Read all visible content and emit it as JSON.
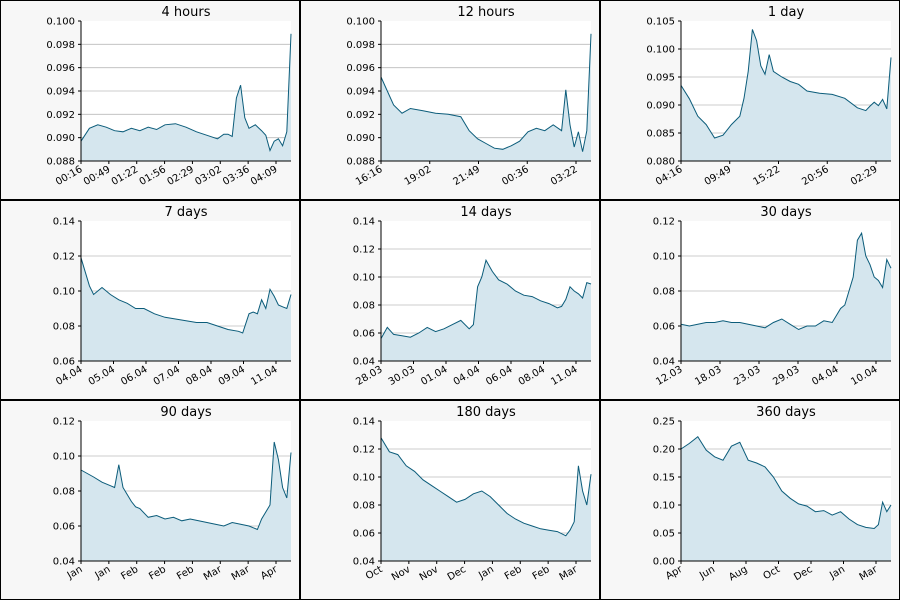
{
  "colors": {
    "line": "#0b5c7a",
    "fill": "#d5e6ee",
    "grid": "#bbbbbb",
    "plot_bg": "#ffffff",
    "panel_bg": "#f7f7f7"
  },
  "chart_data": [
    {
      "type": "area",
      "title": "4 hours",
      "ylim": [
        0.088,
        0.1
      ],
      "yticks": [
        "0.088",
        "0.090",
        "0.092",
        "0.094",
        "0.096",
        "0.098",
        "0.100"
      ],
      "xticks": [
        "00:16",
        "00:49",
        "01:22",
        "01:56",
        "02:29",
        "03:02",
        "03:36",
        "04:09"
      ],
      "grid": "horizontal",
      "series": [
        {
          "x": [
            0,
            4,
            8,
            12,
            16,
            20,
            24,
            28,
            32,
            36,
            40,
            45,
            50,
            55,
            60,
            65,
            68,
            70,
            72,
            74,
            76,
            78,
            80,
            83,
            86,
            88,
            90,
            92,
            94,
            96,
            98,
            100
          ],
          "y": [
            0.0897,
            0.0908,
            0.0911,
            0.0909,
            0.0906,
            0.0905,
            0.0908,
            0.0906,
            0.0909,
            0.0907,
            0.0911,
            0.0912,
            0.0909,
            0.0905,
            0.0902,
            0.0899,
            0.0903,
            0.0903,
            0.0901,
            0.0934,
            0.0945,
            0.0917,
            0.0908,
            0.0911,
            0.0906,
            0.0902,
            0.0889,
            0.0897,
            0.0899,
            0.0893,
            0.0905,
            0.0989
          ]
        }
      ]
    },
    {
      "type": "area",
      "title": "12 hours",
      "ylim": [
        0.088,
        0.1
      ],
      "yticks": [
        "0.088",
        "0.090",
        "0.092",
        "0.094",
        "0.096",
        "0.098",
        "0.100"
      ],
      "xticks": [
        "16:16",
        "19:02",
        "21:49",
        "00:36",
        "03:22"
      ],
      "grid": "horizontal",
      "series": [
        {
          "x": [
            0,
            3,
            6,
            10,
            14,
            20,
            26,
            32,
            38,
            42,
            46,
            50,
            54,
            58,
            62,
            66,
            70,
            74,
            78,
            82,
            86,
            88,
            90,
            92,
            94,
            96,
            98,
            100
          ],
          "y": [
            0.0952,
            0.094,
            0.0928,
            0.0921,
            0.0925,
            0.0923,
            0.0921,
            0.092,
            0.0918,
            0.0906,
            0.0899,
            0.0895,
            0.0891,
            0.089,
            0.0893,
            0.0897,
            0.0905,
            0.0908,
            0.0906,
            0.0911,
            0.0906,
            0.0941,
            0.0911,
            0.0892,
            0.0905,
            0.0888,
            0.0906,
            0.0989
          ]
        }
      ]
    },
    {
      "type": "area",
      "title": "1 day",
      "ylim": [
        0.08,
        0.105
      ],
      "yticks": [
        "0.080",
        "0.085",
        "0.090",
        "0.095",
        "0.100",
        "0.105"
      ],
      "xticks": [
        "04:16",
        "09:49",
        "15:22",
        "20:56",
        "02:29"
      ],
      "grid": "horizontal",
      "series": [
        {
          "x": [
            0,
            4,
            8,
            12,
            16,
            20,
            24,
            28,
            30,
            32,
            34,
            36,
            38,
            40,
            42,
            44,
            48,
            52,
            56,
            60,
            66,
            72,
            78,
            84,
            88,
            90,
            92,
            94,
            96,
            98,
            100
          ],
          "y": [
            0.0935,
            0.0911,
            0.088,
            0.0865,
            0.0841,
            0.0846,
            0.0865,
            0.088,
            0.0912,
            0.096,
            0.1035,
            0.1015,
            0.097,
            0.0955,
            0.099,
            0.096,
            0.095,
            0.0942,
            0.0937,
            0.0925,
            0.0921,
            0.0919,
            0.0912,
            0.0895,
            0.089,
            0.0898,
            0.0905,
            0.0899,
            0.091,
            0.0893,
            0.0985
          ]
        }
      ]
    },
    {
      "type": "area",
      "title": "7 days",
      "ylim": [
        0.06,
        0.14
      ],
      "yticks": [
        "0.06",
        "0.08",
        "0.10",
        "0.12",
        "0.14"
      ],
      "xticks": [
        "04.04",
        "05.04",
        "06.04",
        "07.04",
        "08.04",
        "09.04",
        "11.04"
      ],
      "grid": "horizontal",
      "series": [
        {
          "x": [
            0,
            2,
            4,
            6,
            8,
            10,
            14,
            18,
            22,
            26,
            30,
            35,
            40,
            45,
            50,
            55,
            60,
            65,
            70,
            75,
            77,
            80,
            82,
            84,
            86,
            88,
            90,
            92,
            94,
            96,
            98,
            100
          ],
          "y": [
            0.119,
            0.111,
            0.103,
            0.098,
            0.1,
            0.102,
            0.098,
            0.095,
            0.093,
            0.09,
            0.09,
            0.087,
            0.085,
            0.084,
            0.083,
            0.082,
            0.082,
            0.08,
            0.078,
            0.077,
            0.076,
            0.087,
            0.088,
            0.087,
            0.095,
            0.09,
            0.101,
            0.097,
            0.092,
            0.091,
            0.09,
            0.098
          ]
        }
      ]
    },
    {
      "type": "area",
      "title": "14 days",
      "ylim": [
        0.04,
        0.14
      ],
      "yticks": [
        "0.04",
        "0.06",
        "0.08",
        "0.10",
        "0.12",
        "0.14"
      ],
      "xticks": [
        "28.03",
        "30.03",
        "01.04",
        "04.04",
        "06.04",
        "08.04",
        "11.04"
      ],
      "grid": "horizontal",
      "series": [
        {
          "x": [
            0,
            3,
            6,
            10,
            14,
            18,
            22,
            26,
            30,
            34,
            38,
            42,
            44,
            46,
            48,
            50,
            53,
            56,
            60,
            64,
            68,
            72,
            76,
            80,
            84,
            86,
            88,
            90,
            92,
            94,
            96,
            98,
            100
          ],
          "y": [
            0.056,
            0.064,
            0.059,
            0.058,
            0.057,
            0.06,
            0.064,
            0.061,
            0.063,
            0.066,
            0.069,
            0.063,
            0.066,
            0.093,
            0.1,
            0.112,
            0.104,
            0.098,
            0.095,
            0.09,
            0.087,
            0.086,
            0.083,
            0.081,
            0.078,
            0.079,
            0.084,
            0.093,
            0.09,
            0.088,
            0.085,
            0.096,
            0.095
          ]
        }
      ]
    },
    {
      "type": "area",
      "title": "30 days",
      "ylim": [
        0.04,
        0.12
      ],
      "yticks": [
        "0.04",
        "0.06",
        "0.08",
        "0.10",
        "0.12"
      ],
      "xticks": [
        "12.03",
        "18.03",
        "23.03",
        "29.03",
        "04.04",
        "10.04"
      ],
      "grid": "horizontal",
      "series": [
        {
          "x": [
            0,
            4,
            8,
            12,
            16,
            20,
            24,
            28,
            32,
            36,
            40,
            44,
            48,
            52,
            56,
            60,
            64,
            68,
            72,
            74,
            76,
            78,
            80,
            82,
            84,
            86,
            88,
            90,
            92,
            94,
            96,
            98,
            100
          ],
          "y": [
            0.061,
            0.06,
            0.061,
            0.062,
            0.062,
            0.063,
            0.062,
            0.062,
            0.061,
            0.06,
            0.059,
            0.062,
            0.064,
            0.061,
            0.058,
            0.06,
            0.06,
            0.063,
            0.062,
            0.066,
            0.07,
            0.072,
            0.08,
            0.088,
            0.109,
            0.113,
            0.1,
            0.095,
            0.088,
            0.086,
            0.082,
            0.098,
            0.093
          ]
        }
      ]
    },
    {
      "type": "area",
      "title": "90 days",
      "ylim": [
        0.04,
        0.12
      ],
      "yticks": [
        "0.04",
        "0.06",
        "0.08",
        "0.10",
        "0.12"
      ],
      "xticks": [
        "Jan",
        "Jan",
        "Feb",
        "Feb",
        "Feb",
        "Mar",
        "Mar",
        "Apr"
      ],
      "grid": "horizontal",
      "series": [
        {
          "x": [
            0,
            3,
            6,
            10,
            14,
            16,
            18,
            20,
            22,
            24,
            26,
            28,
            32,
            36,
            40,
            44,
            48,
            52,
            56,
            60,
            64,
            68,
            72,
            76,
            80,
            84,
            86,
            88,
            90,
            92,
            94,
            96,
            98,
            100
          ],
          "y": [
            0.092,
            0.09,
            0.088,
            0.085,
            0.083,
            0.082,
            0.095,
            0.082,
            0.078,
            0.074,
            0.071,
            0.07,
            0.065,
            0.066,
            0.064,
            0.065,
            0.063,
            0.064,
            0.063,
            0.062,
            0.061,
            0.06,
            0.062,
            0.061,
            0.06,
            0.058,
            0.064,
            0.068,
            0.072,
            0.108,
            0.098,
            0.082,
            0.076,
            0.102
          ]
        }
      ]
    },
    {
      "type": "area",
      "title": "180 days",
      "ylim": [
        0.04,
        0.14
      ],
      "yticks": [
        "0.04",
        "0.06",
        "0.08",
        "0.10",
        "0.12",
        "0.14"
      ],
      "xticks": [
        "Oct",
        "Nov",
        "Nov",
        "Dec",
        "Jan",
        "Feb",
        "Feb",
        "Mar"
      ],
      "grid": "horizontal",
      "series": [
        {
          "x": [
            0,
            4,
            8,
            12,
            16,
            20,
            24,
            28,
            32,
            36,
            40,
            44,
            48,
            52,
            56,
            60,
            64,
            68,
            72,
            76,
            80,
            84,
            88,
            90,
            92,
            94,
            96,
            98,
            100
          ],
          "y": [
            0.128,
            0.118,
            0.116,
            0.108,
            0.104,
            0.098,
            0.094,
            0.09,
            0.086,
            0.082,
            0.084,
            0.088,
            0.09,
            0.086,
            0.08,
            0.074,
            0.07,
            0.067,
            0.065,
            0.063,
            0.062,
            0.061,
            0.058,
            0.062,
            0.068,
            0.108,
            0.09,
            0.08,
            0.102
          ]
        }
      ]
    },
    {
      "type": "area",
      "title": "360 days",
      "ylim": [
        0.0,
        0.25
      ],
      "yticks": [
        "0.00",
        "0.05",
        "0.10",
        "0.15",
        "0.20",
        "0.25"
      ],
      "xticks": [
        "Apr",
        "Jun",
        "Aug",
        "Oct",
        "Dec",
        "Jan",
        "Mar"
      ],
      "grid": "horizontal",
      "series": [
        {
          "x": [
            0,
            4,
            8,
            12,
            16,
            20,
            24,
            28,
            32,
            36,
            40,
            44,
            48,
            52,
            56,
            60,
            64,
            68,
            72,
            76,
            80,
            84,
            88,
            92,
            94,
            96,
            98,
            100
          ],
          "y": [
            0.2,
            0.21,
            0.222,
            0.198,
            0.186,
            0.18,
            0.205,
            0.212,
            0.18,
            0.175,
            0.168,
            0.15,
            0.125,
            0.112,
            0.102,
            0.098,
            0.088,
            0.09,
            0.082,
            0.088,
            0.075,
            0.065,
            0.06,
            0.058,
            0.065,
            0.105,
            0.088,
            0.1
          ]
        }
      ]
    }
  ]
}
